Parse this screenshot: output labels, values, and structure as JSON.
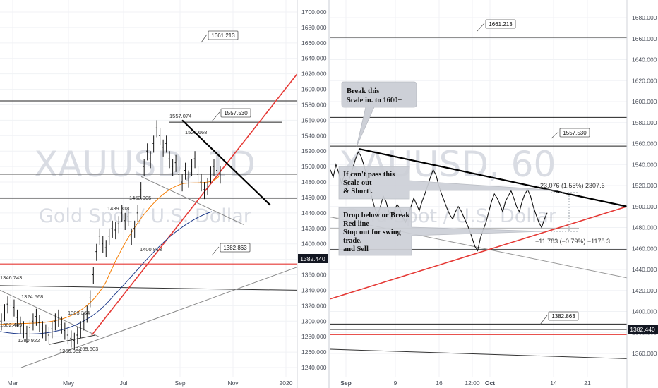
{
  "chart_data": [
    {
      "type": "line",
      "panel": "left",
      "watermark": {
        "symbol": "XAUUSD, 1D",
        "name": "Gold Spot / U.S. Dollar"
      },
      "ylim": [
        1230,
        1710
      ],
      "y_ticks": [
        "1240.000",
        "1260.000",
        "1280.000",
        "1300.000",
        "1320.000",
        "1340.000",
        "1360.000",
        "1380.000",
        "1400.000",
        "1420.000",
        "1440.000",
        "1460.000",
        "1480.000",
        "1500.000",
        "1520.000",
        "1540.000",
        "1560.000",
        "1580.000",
        "1600.000",
        "1620.000",
        "1640.000",
        "1660.000",
        "1680.000",
        "1700.000"
      ],
      "x_ticks": [
        "Mar",
        "May",
        "Jul",
        "Sep",
        "Nov",
        "2020"
      ],
      "price_labels": [
        "1346.743",
        "1324.568",
        "1303.364",
        "1302.489",
        "1280.922",
        "1266.952",
        "1269.603",
        "1400.813",
        "1439.318",
        "1453.005",
        "1557.074",
        "1523.668"
      ],
      "level_boxes": [
        "1661.213",
        "1557.530",
        "1382.863"
      ],
      "current_price": "1382.440",
      "candles_close": [
        1300,
        1312,
        1322,
        1330,
        1318,
        1305,
        1296,
        1290,
        1284,
        1292,
        1300,
        1306,
        1298,
        1290,
        1286,
        1282,
        1290,
        1300,
        1305,
        1296,
        1288,
        1282,
        1278,
        1275,
        1282,
        1290,
        1300,
        1310,
        1330,
        1360,
        1390,
        1410,
        1400,
        1395,
        1410,
        1420,
        1418,
        1426,
        1440,
        1430,
        1435,
        1410,
        1420,
        1440,
        1470,
        1500,
        1520,
        1510,
        1530,
        1550,
        1540,
        1525,
        1530,
        1510,
        1500,
        1505,
        1490,
        1480,
        1495,
        1485,
        1500,
        1510,
        1490,
        1480,
        1470,
        1475,
        1490,
        1500,
        1495,
        1490
      ]
    },
    {
      "type": "line",
      "panel": "right",
      "watermark": {
        "symbol": "XAUUSD, 60",
        "name": "Gold Spot / U.S. Dollar"
      },
      "ylim": [
        1340,
        1700
      ],
      "y_ticks": [
        "1360.000",
        "1380.000",
        "1400.000",
        "1420.000",
        "1440.000",
        "1460.000",
        "1480.000",
        "1500.000",
        "1520.000",
        "1540.000",
        "1560.000",
        "1580.000",
        "1600.000",
        "1620.000",
        "1640.000",
        "1660.000",
        "1680.000"
      ],
      "x_ticks": [
        "Sep",
        "9",
        "16",
        "12:00",
        "Oct",
        "14",
        "21"
      ],
      "level_boxes": [
        "1661.213",
        "1557.530",
        "1382.863"
      ],
      "current_price": "1382.440",
      "measure_upper": "23.076 (1.55%) 2307.6",
      "measure_lower": "−11.783 (−0.79%) −1178.3",
      "callouts": {
        "c1": [
          "Break this",
          "Scale in. to 1600+"
        ],
        "c2": [
          "If can't pass this",
          "Scale out",
          "& Short ."
        ],
        "c3": [
          "Drop below or Break",
          "Red line",
          "Stop out for swing",
          "trade.",
          "and Sell"
        ]
      },
      "prices": [
        1535,
        1528,
        1540,
        1532,
        1522,
        1530,
        1518,
        1528,
        1536,
        1545,
        1552,
        1548,
        1540,
        1530,
        1518,
        1508,
        1498,
        1492,
        1500,
        1510,
        1505,
        1495,
        1488,
        1496,
        1502,
        1498,
        1490,
        1485,
        1492,
        1500,
        1508,
        1502,
        1496,
        1505,
        1512,
        1520,
        1528,
        1535,
        1530,
        1520,
        1512,
        1505,
        1498,
        1492,
        1488,
        1495,
        1500,
        1496,
        1490,
        1484,
        1478,
        1470,
        1462,
        1458,
        1470,
        1478,
        1485,
        1495,
        1505,
        1512,
        1508,
        1502,
        1495,
        1505,
        1510,
        1515,
        1508,
        1500,
        1495,
        1505,
        1512,
        1516,
        1510,
        1500,
        1492,
        1485,
        1480,
        1488,
        1494
      ]
    }
  ]
}
